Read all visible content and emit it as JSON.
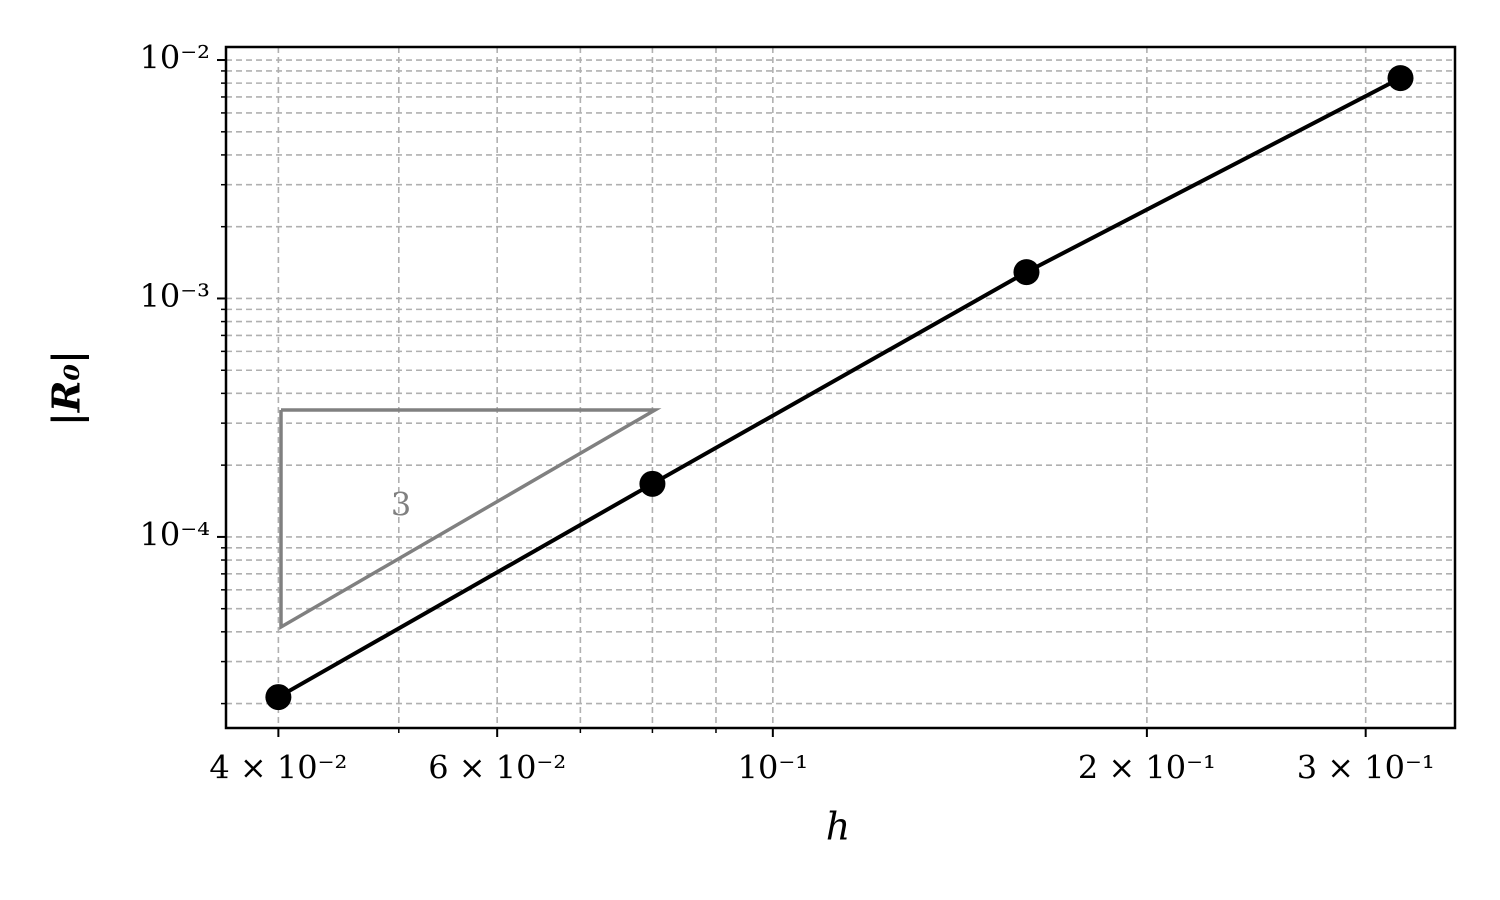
{
  "chart_data": {
    "type": "line",
    "x_label": "h",
    "y_label": "|R₀|",
    "x": [
      0.04,
      0.08,
      0.16,
      0.32
    ],
    "series": [
      {
        "name": "|R₀|",
        "color": "#000000",
        "values": [
          2.13e-05,
          0.000167,
          0.00129,
          0.0084
        ]
      }
    ],
    "xscale": "log",
    "yscale": "log",
    "xlim": [
      0.0363,
      0.354
    ],
    "ylim": [
      1.58e-05,
      0.01134
    ],
    "xticks": [
      {
        "value": 0.04,
        "label": "4 × 10⁻²"
      },
      {
        "value": 0.06,
        "label": "6 × 10⁻²"
      },
      {
        "value": 0.1,
        "label": "10⁻¹"
      },
      {
        "value": 0.2,
        "label": "2 × 10⁻¹"
      },
      {
        "value": 0.3,
        "label": "3 × 10⁻¹"
      }
    ],
    "xminorticks": [
      0.05,
      0.07,
      0.08,
      0.09
    ],
    "yticks": [
      {
        "value": 0.0001,
        "label": "10⁻⁴"
      },
      {
        "value": 0.001,
        "label": "10⁻³"
      },
      {
        "value": 0.01,
        "label": "10⁻²"
      }
    ],
    "yminorticks": [
      2e-05,
      3e-05,
      4e-05,
      5e-05,
      6e-05,
      7e-05,
      8e-05,
      9e-05,
      0.0002,
      0.0003,
      0.0004,
      0.0005,
      0.0006,
      0.0007,
      0.0008,
      0.0009,
      0.002,
      0.003,
      0.004,
      0.005,
      0.006,
      0.007,
      0.008,
      0.009
    ],
    "grid": true,
    "annotations": [
      {
        "text": "3"
      }
    ]
  }
}
